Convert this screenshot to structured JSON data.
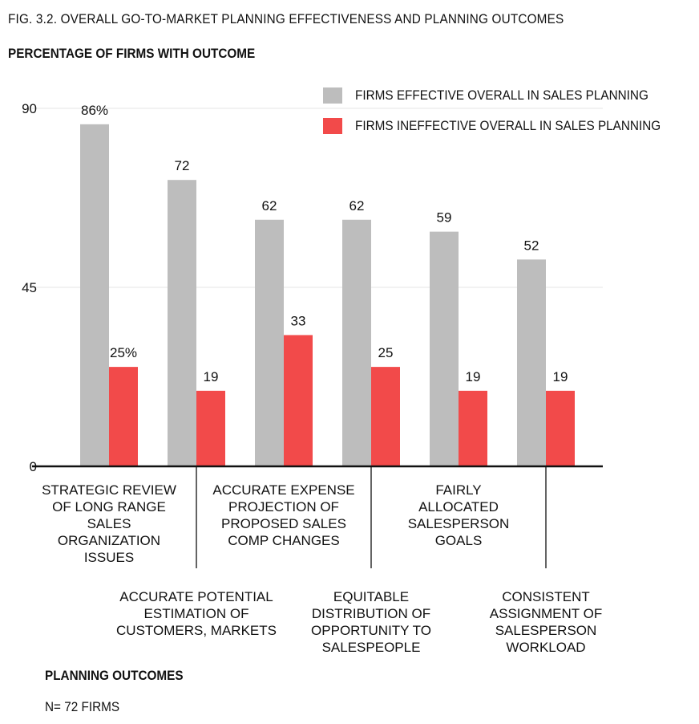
{
  "figure_title": "FIG. 3.2. OVERALL GO-TO-MARKET PLANNING EFFECTIVENESS AND PLANNING OUTCOMES",
  "footer": {
    "category_axis_title": "PLANNING OUTCOMES",
    "sample_size": "N= 72 FIRMS"
  },
  "colors": {
    "effective": "#bdbdbd",
    "ineffective": "#f24a4a",
    "axis": "#111111",
    "grid": "#e6e6e6"
  },
  "chart_data": {
    "type": "bar",
    "title": "FIG. 3.2. OVERALL GO-TO-MARKET PLANNING EFFECTIVENESS AND PLANNING OUTCOMES",
    "ylabel": "PERCENTAGE OF FIRMS WITH OUTCOME",
    "xlabel": "PLANNING OUTCOMES",
    "ylim": [
      0,
      90
    ],
    "yticks": [
      0,
      45,
      90
    ],
    "grid": true,
    "legend_position": "top-right",
    "categories": [
      "STRATEGIC REVIEW OF LONG RANGE SALES ORGANIZATION ISSUES",
      "ACCURATE POTENTIAL ESTIMATION OF CUSTOMERS, MARKETS",
      "ACCURATE EXPENSE PROJECTION OF PROPOSED SALES COMP CHANGES",
      "EQUITABLE DISTRIBUTION OF OPPORTUNITY TO SALESPEOPLE",
      "FAIRLY ALLOCATED SALESPERSON GOALS",
      "CONSISTENT ASSIGNMENT OF SALESPERSON WORKLOAD"
    ],
    "category_label_lines": [
      [
        "STRATEGIC REVIEW",
        "OF LONG RANGE",
        "SALES",
        "ORGANIZATION",
        "ISSUES"
      ],
      [
        "ACCURATE POTENTIAL",
        "ESTIMATION OF",
        "CUSTOMERS, MARKETS"
      ],
      [
        "ACCURATE EXPENSE",
        "PROJECTION OF",
        "PROPOSED SALES",
        "COMP CHANGES"
      ],
      [
        "EQUITABLE",
        "DISTRIBUTION OF",
        "OPPORTUNITY TO",
        "SALESPEOPLE"
      ],
      [
        "FAIRLY",
        "ALLOCATED",
        "SALESPERSON",
        "GOALS"
      ],
      [
        "CONSISTENT",
        "ASSIGNMENT OF",
        "SALESPERSON",
        "WORKLOAD"
      ]
    ],
    "series": [
      {
        "name": "FIRMS EFFECTIVE OVERALL IN SALES PLANNING",
        "values": [
          86,
          72,
          62,
          62,
          59,
          52
        ],
        "data_labels": [
          "86%",
          "72",
          "62",
          "62",
          "59",
          "52"
        ]
      },
      {
        "name": "FIRMS INEFFECTIVE OVERALL IN SALES PLANNING",
        "values": [
          25,
          19,
          33,
          25,
          19,
          19
        ],
        "data_labels": [
          "25%",
          "19",
          "33",
          "25",
          "19",
          "19"
        ]
      }
    ]
  }
}
